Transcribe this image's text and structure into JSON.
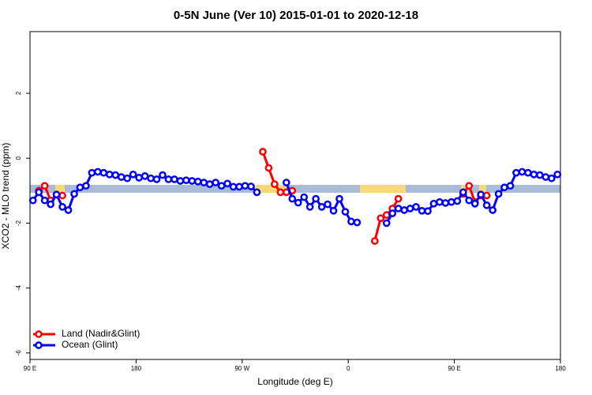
{
  "chart_data": {
    "type": "line",
    "title": "0-5N June (Ver 10)   2015-01-01 to 2020-12-18",
    "xlabel": "Longitude (deg E)",
    "ylabel": "XCO2 - MLO trend (ppm)",
    "xlim": [
      90,
      540
    ],
    "ylim": [
      -6.2,
      3.9
    ],
    "xticks": [
      {
        "value": 90,
        "label": "90 E"
      },
      180,
      {
        "value": 270,
        "label": "90 W"
      },
      {
        "value": 360,
        "label": "0"
      },
      {
        "value": 450,
        "label": "90 E"
      },
      {
        "value": 540,
        "label": "180"
      }
    ],
    "yticks": [
      -6,
      -4,
      -2,
      0,
      2
    ],
    "legend": "bottom-left",
    "series": [
      {
        "name": "Land (Nadir&Glint)",
        "color": "#ff0000",
        "x": [
          97.5,
          102.5,
          107.5,
          112.5,
          117.5,
          200,
          287.5,
          292.5,
          297.5,
          302.5,
          307.5,
          312.5,
          350,
          382.5,
          387.5,
          392.5,
          397.5,
          402.5,
          430,
          457.5,
          462.5,
          467.5,
          472.5,
          477.5
        ],
        "values": [
          -1.0,
          -0.85,
          -1.3,
          -1.12,
          -1.15,
          null,
          0.2,
          -0.3,
          -0.8,
          -1.05,
          -1.05,
          -1.0,
          null,
          -2.55,
          -1.85,
          -1.75,
          -1.55,
          -1.25,
          null,
          -1.1,
          -0.85,
          -1.35,
          -1.15,
          -1.15
        ]
      },
      {
        "name": "Ocean (Glint)",
        "color": "#0000ff",
        "x": [
          92.5,
          97.5,
          102.5,
          107.5,
          112.5,
          117.5,
          122.5,
          127.5,
          132.5,
          137.5,
          142.5,
          147.5,
          152.5,
          157.5,
          162.5,
          167.5,
          172.5,
          177.5,
          182.5,
          187.5,
          192.5,
          197.5,
          202.5,
          207.5,
          212.5,
          217.5,
          222.5,
          227.5,
          232.5,
          237.5,
          242.5,
          247.5,
          252.5,
          257.5,
          262.5,
          267.5,
          272.5,
          277.5,
          282.5,
          295,
          307.5,
          312.5,
          317.5,
          322.5,
          327.5,
          332.5,
          337.5,
          342.5,
          347.5,
          352.5,
          357.5,
          362.5,
          367.5,
          380,
          392.5,
          397.5,
          402.5,
          407.5,
          412.5,
          417.5,
          422.5,
          427.5,
          432.5,
          437.5,
          442.5,
          447.5,
          452.5,
          457.5,
          462.5,
          467.5,
          472.5,
          477.5,
          482.5,
          487.5,
          492.5,
          497.5,
          502.5,
          507.5,
          512.5,
          517.5,
          522.5,
          527.5,
          532.5,
          537.5
        ],
        "values": [
          -1.3,
          -1.05,
          -1.3,
          -1.42,
          -1.12,
          -1.5,
          -1.6,
          -1.1,
          -0.9,
          -0.85,
          -0.45,
          -0.42,
          -0.45,
          -0.5,
          -0.52,
          -0.58,
          -0.62,
          -0.5,
          -0.6,
          -0.55,
          -0.62,
          -0.65,
          -0.52,
          -0.65,
          -0.65,
          -0.7,
          -0.68,
          -0.7,
          -0.72,
          -0.75,
          -0.8,
          -0.75,
          -0.85,
          -0.78,
          -0.88,
          -0.88,
          -0.85,
          -0.87,
          -1.05,
          null,
          -0.75,
          -1.25,
          -1.37,
          -1.2,
          -1.5,
          -1.25,
          -1.5,
          -1.42,
          -1.62,
          -1.25,
          -1.65,
          -1.95,
          -1.98,
          null,
          -2.0,
          -1.7,
          -1.55,
          -1.6,
          -1.55,
          -1.5,
          -1.62,
          -1.63,
          -1.4,
          -1.35,
          -1.38,
          -1.35,
          -1.32,
          -1.05,
          -1.3,
          -1.4,
          -1.12,
          -1.45,
          -1.6,
          -1.1,
          -0.9,
          -0.85,
          -0.45,
          -0.42,
          -0.45,
          -0.5,
          -0.52,
          -0.58,
          -0.62,
          -0.5
        ]
      }
    ]
  }
}
